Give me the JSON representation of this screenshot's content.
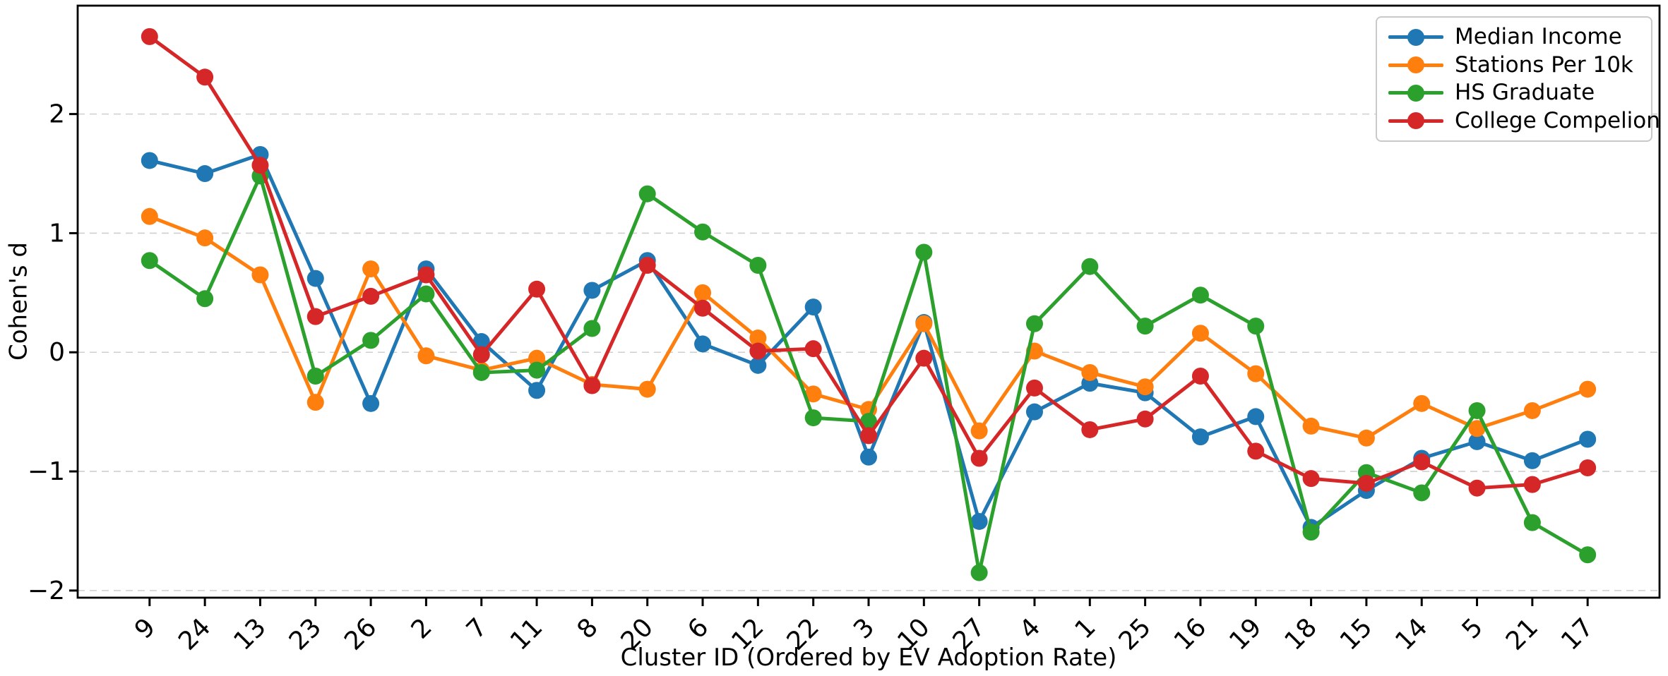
{
  "chart_data": {
    "type": "line",
    "title": "",
    "xlabel": "Cluster ID (Ordered by EV Adoption Rate)",
    "ylabel": "Cohen's d",
    "categories": [
      "9",
      "24",
      "13",
      "23",
      "26",
      "2",
      "7",
      "11",
      "8",
      "20",
      "6",
      "12",
      "22",
      "3",
      "10",
      "27",
      "4",
      "1",
      "25",
      "16",
      "19",
      "18",
      "15",
      "14",
      "5",
      "21",
      "17"
    ],
    "series": [
      {
        "name": "Median Income",
        "color": "#1f77b4",
        "values": [
          1.61,
          1.5,
          1.66,
          0.62,
          -0.43,
          0.7,
          0.09,
          -0.32,
          0.52,
          0.77,
          0.07,
          -0.11,
          0.38,
          -0.88,
          0.25,
          -1.42,
          -0.5,
          -0.26,
          -0.34,
          -0.71,
          -0.54,
          -1.47,
          -1.16,
          -0.89,
          -0.75,
          -0.91,
          -0.73
        ]
      },
      {
        "name": "Stations Per 10k",
        "color": "#ff7f0e",
        "values": [
          1.14,
          0.96,
          0.65,
          -0.42,
          0.7,
          -0.03,
          -0.15,
          -0.05,
          -0.27,
          -0.31,
          0.5,
          0.12,
          -0.35,
          -0.48,
          0.24,
          -0.66,
          0.01,
          -0.17,
          -0.29,
          0.16,
          -0.18,
          -0.62,
          -0.72,
          -0.43,
          -0.64,
          -0.49,
          -0.31
        ]
      },
      {
        "name": "HS Graduate",
        "color": "#2ca02c",
        "values": [
          0.77,
          0.45,
          1.48,
          -0.2,
          0.1,
          0.49,
          -0.17,
          -0.15,
          0.2,
          1.33,
          1.01,
          0.73,
          -0.55,
          -0.58,
          0.84,
          -1.85,
          0.24,
          0.72,
          0.22,
          0.48,
          0.22,
          -1.51,
          -1.01,
          -1.18,
          -0.49,
          -1.43,
          -1.7
        ]
      },
      {
        "name": "College Compelion",
        "color": "#d62728",
        "values": [
          2.65,
          2.31,
          1.57,
          0.3,
          0.47,
          0.65,
          -0.02,
          0.53,
          -0.28,
          0.73,
          0.37,
          0.01,
          0.03,
          -0.7,
          -0.05,
          -0.89,
          -0.3,
          -0.65,
          -0.56,
          -0.2,
          -0.83,
          -1.06,
          -1.1,
          -0.92,
          -1.14,
          -1.11,
          -0.97
        ]
      }
    ],
    "yticks": [
      -2,
      -1,
      0,
      1,
      2
    ],
    "ylim": [
      -2.06,
      2.91
    ],
    "grid": true,
    "grid_color": "#cfcfcf",
    "axis_color": "#000000",
    "legend_position": "top-right",
    "marker": "o"
  }
}
